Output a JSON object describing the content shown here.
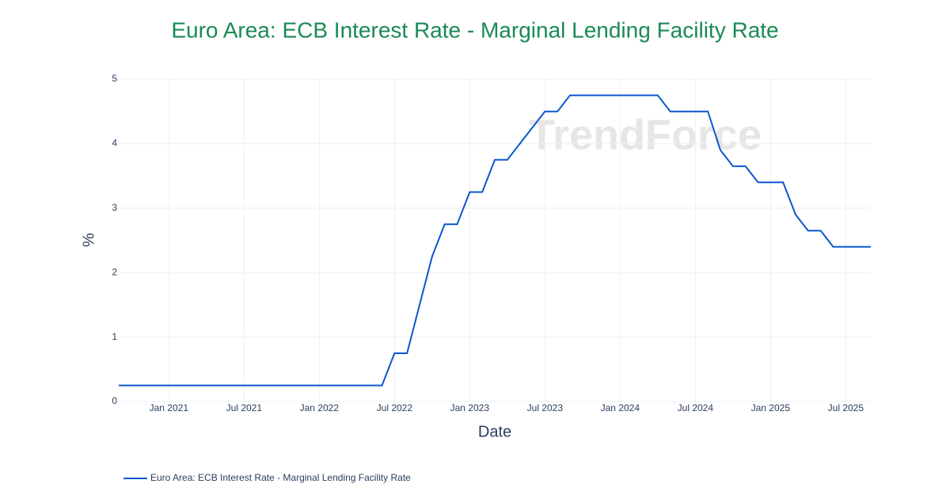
{
  "chart_data": {
    "type": "line",
    "title": "Euro Area: ECB Interest Rate - Marginal Lending Facility Rate",
    "watermark": "TrendForce",
    "x_label": "Date",
    "y_label": "%",
    "x": [
      "2020-09",
      "2020-10",
      "2020-11",
      "2020-12",
      "2021-01",
      "2021-02",
      "2021-03",
      "2021-04",
      "2021-05",
      "2021-06",
      "2021-07",
      "2021-08",
      "2021-09",
      "2021-10",
      "2021-11",
      "2021-12",
      "2022-01",
      "2022-02",
      "2022-03",
      "2022-04",
      "2022-05",
      "2022-06",
      "2022-07",
      "2022-08",
      "2022-09",
      "2022-10",
      "2022-11",
      "2022-12",
      "2023-01",
      "2023-02",
      "2023-03",
      "2023-04",
      "2023-05",
      "2023-06",
      "2023-07",
      "2023-08",
      "2023-09",
      "2023-10",
      "2023-11",
      "2023-12",
      "2024-01",
      "2024-02",
      "2024-03",
      "2024-04",
      "2024-05",
      "2024-06",
      "2024-07",
      "2024-08",
      "2024-09",
      "2024-10",
      "2024-11",
      "2024-12",
      "2025-01",
      "2025-02",
      "2025-03",
      "2025-04",
      "2025-05",
      "2025-06",
      "2025-07",
      "2025-08",
      "2025-09"
    ],
    "series": [
      {
        "name": "Euro Area: ECB Interest Rate - Marginal Lending Facility Rate",
        "color": "#0b57d0",
        "values": [
          0.25,
          0.25,
          0.25,
          0.25,
          0.25,
          0.25,
          0.25,
          0.25,
          0.25,
          0.25,
          0.25,
          0.25,
          0.25,
          0.25,
          0.25,
          0.25,
          0.25,
          0.25,
          0.25,
          0.25,
          0.25,
          0.25,
          0.75,
          0.75,
          1.5,
          2.25,
          2.75,
          2.75,
          3.25,
          3.25,
          3.75,
          3.75,
          4.0,
          4.25,
          4.5,
          4.5,
          4.75,
          4.75,
          4.75,
          4.75,
          4.75,
          4.75,
          4.75,
          4.75,
          4.5,
          4.5,
          4.5,
          4.5,
          3.9,
          3.65,
          3.65,
          3.4,
          3.4,
          3.4,
          2.9,
          2.65,
          2.65,
          2.4,
          2.4,
          2.4,
          2.4
        ]
      }
    ],
    "xlim": [
      "2020-09",
      "2025-09"
    ],
    "xticks": [
      {
        "value": "2021-01",
        "label": "Jan 2021"
      },
      {
        "value": "2021-07",
        "label": "Jul 2021"
      },
      {
        "value": "2022-01",
        "label": "Jan 2022"
      },
      {
        "value": "2022-07",
        "label": "Jul 2022"
      },
      {
        "value": "2023-01",
        "label": "Jan 2023"
      },
      {
        "value": "2023-07",
        "label": "Jul 2023"
      },
      {
        "value": "2024-01",
        "label": "Jan 2024"
      },
      {
        "value": "2024-07",
        "label": "Jul 2024"
      },
      {
        "value": "2025-01",
        "label": "Jan 2025"
      },
      {
        "value": "2025-07",
        "label": "Jul 2025"
      }
    ],
    "ylim": [
      0,
      5
    ],
    "yticks": [
      0,
      1,
      2,
      3,
      4,
      5
    ],
    "grid": true
  }
}
